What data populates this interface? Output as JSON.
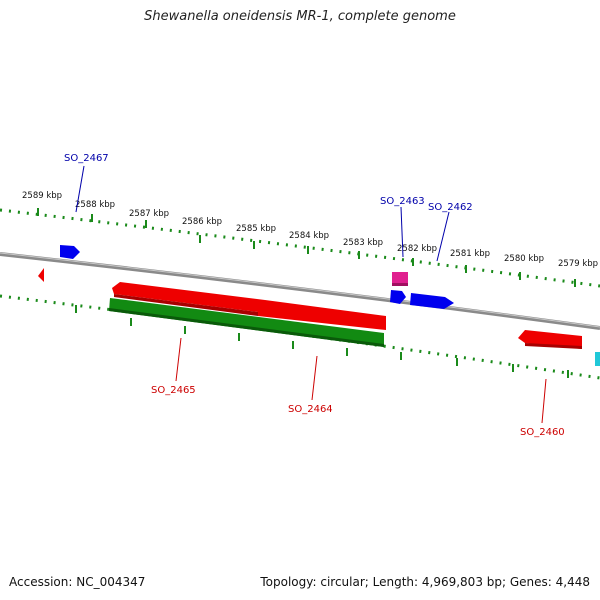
{
  "title": "Shewanella oneidensis MR-1, complete genome",
  "footer": {
    "accession": "Accession: NC_004347",
    "summary": "Topology: circular; Length: 4,969,803 bp; Genes: 4,448"
  },
  "colors": {
    "backbone": "#8a8a8a",
    "forward_gene": "#0000ee",
    "reverse_gene": "#ee0000",
    "other_gene": "#e0208f",
    "rna_gene": "#128a12",
    "cyan_gene": "#20c8d8",
    "tick": "#1a8a1a",
    "forward_label": "#0000aa",
    "reverse_label": "#cc0000"
  },
  "scale_labels": [
    "2589 kbp",
    "2588 kbp",
    "2587 kbp",
    "2586 kbp",
    "2585 kbp",
    "2584 kbp",
    "2583 kbp",
    "2582 kbp",
    "2581 kbp",
    "2580 kbp",
    "2579 kbp"
  ],
  "gene_labels": {
    "SO_2467": "SO_2467",
    "SO_2463": "SO_2463",
    "SO_2462": "SO_2462",
    "SO_2465": "SO_2465",
    "SO_2464": "SO_2464",
    "SO_2460": "SO_2460"
  }
}
